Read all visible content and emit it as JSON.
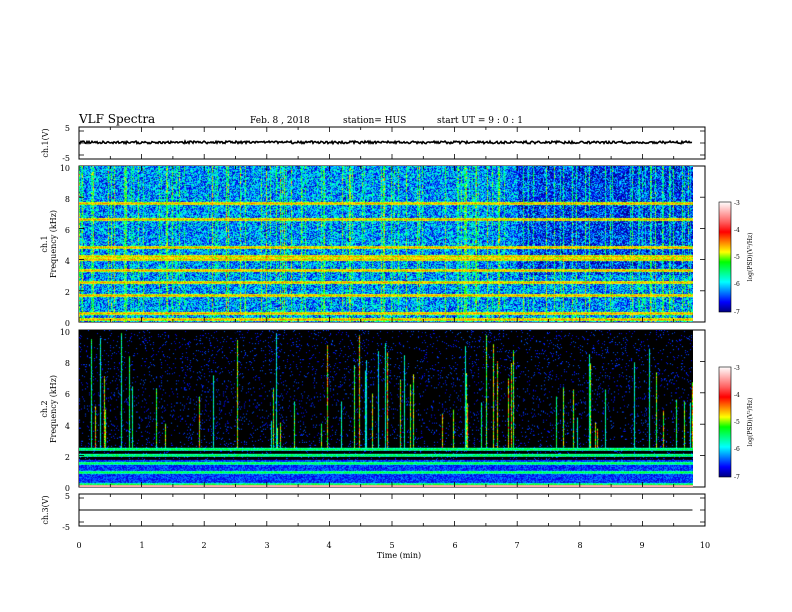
{
  "header": {
    "title": "VLF Spectra",
    "date": "Feb. 8 , 2018",
    "station": "station= HUS",
    "start": "start UT = 9 : 0 : 1"
  },
  "xaxis": {
    "label": "Time (min)",
    "ticks": [
      "0",
      "1",
      "2",
      "3",
      "4",
      "5",
      "6",
      "7",
      "8",
      "9",
      "10"
    ]
  },
  "colorbar": {
    "label": "log(PSD)(V²/Hz)",
    "ticks": [
      "-3",
      "-4",
      "-5",
      "-6",
      "-7"
    ],
    "colors": [
      "#000080",
      "#0000ff",
      "#0080ff",
      "#00ffff",
      "#00ff80",
      "#00ff00",
      "#ffff00",
      "#ff8000",
      "#ff0000",
      "#ff6060",
      "#ffb0b0",
      "#ffffff"
    ]
  },
  "panels": {
    "ch1_wave": {
      "label": "ch.1(V)",
      "ticks": [
        "5",
        "-5"
      ]
    },
    "ch1_spec": {
      "label_top": "ch.1",
      "label": "Frequency (kHz)",
      "ticks": [
        "10",
        "8",
        "6",
        "4",
        "2",
        "0"
      ]
    },
    "ch2_spec": {
      "label_top": "ch.2",
      "label": "Frequency (kHz)",
      "ticks": [
        "10",
        "8",
        "6",
        "4",
        "2",
        "0"
      ]
    },
    "ch3_wave": {
      "label": "ch.3(V)",
      "ticks": [
        "5",
        "-5"
      ]
    }
  },
  "chart_data": [
    {
      "type": "line",
      "name": "ch.1(V)",
      "xlim": [
        0,
        10
      ],
      "ylim": [
        -5,
        5
      ],
      "x": [
        0,
        9.8
      ],
      "y": [
        0.2,
        0.2
      ]
    },
    {
      "type": "heatmap",
      "name": "ch.1",
      "xlim": [
        0,
        10
      ],
      "ylim": [
        0,
        10
      ],
      "xlabel": "Time (min)",
      "ylabel": "Frequency (kHz)",
      "data_extent_x": [
        0,
        9.8
      ],
      "colorbar_range": [
        -7,
        -3
      ],
      "background_log_psd": -6.2,
      "horizontal_bands_khz": [
        0.1,
        0.5,
        1.7,
        2.5,
        3.3,
        4.0,
        4.2,
        4.8,
        6.6,
        7.6
      ]
    },
    {
      "type": "heatmap",
      "name": "ch.2",
      "xlim": [
        0,
        10
      ],
      "ylim": [
        0,
        10
      ],
      "xlabel": "Time (min)",
      "ylabel": "Frequency (kHz)",
      "data_extent_x": [
        0,
        9.8
      ],
      "colorbar_range": [
        -7,
        -3
      ],
      "background_log_psd": -7.0,
      "horizontal_bands_khz": [
        0.1,
        0.9,
        1.5,
        2.0,
        2.4
      ]
    },
    {
      "type": "line",
      "name": "ch.3(V)",
      "xlim": [
        0,
        10
      ],
      "ylim": [
        -5,
        5
      ],
      "x": [
        0,
        9.8
      ],
      "y": [
        0,
        0
      ]
    }
  ]
}
